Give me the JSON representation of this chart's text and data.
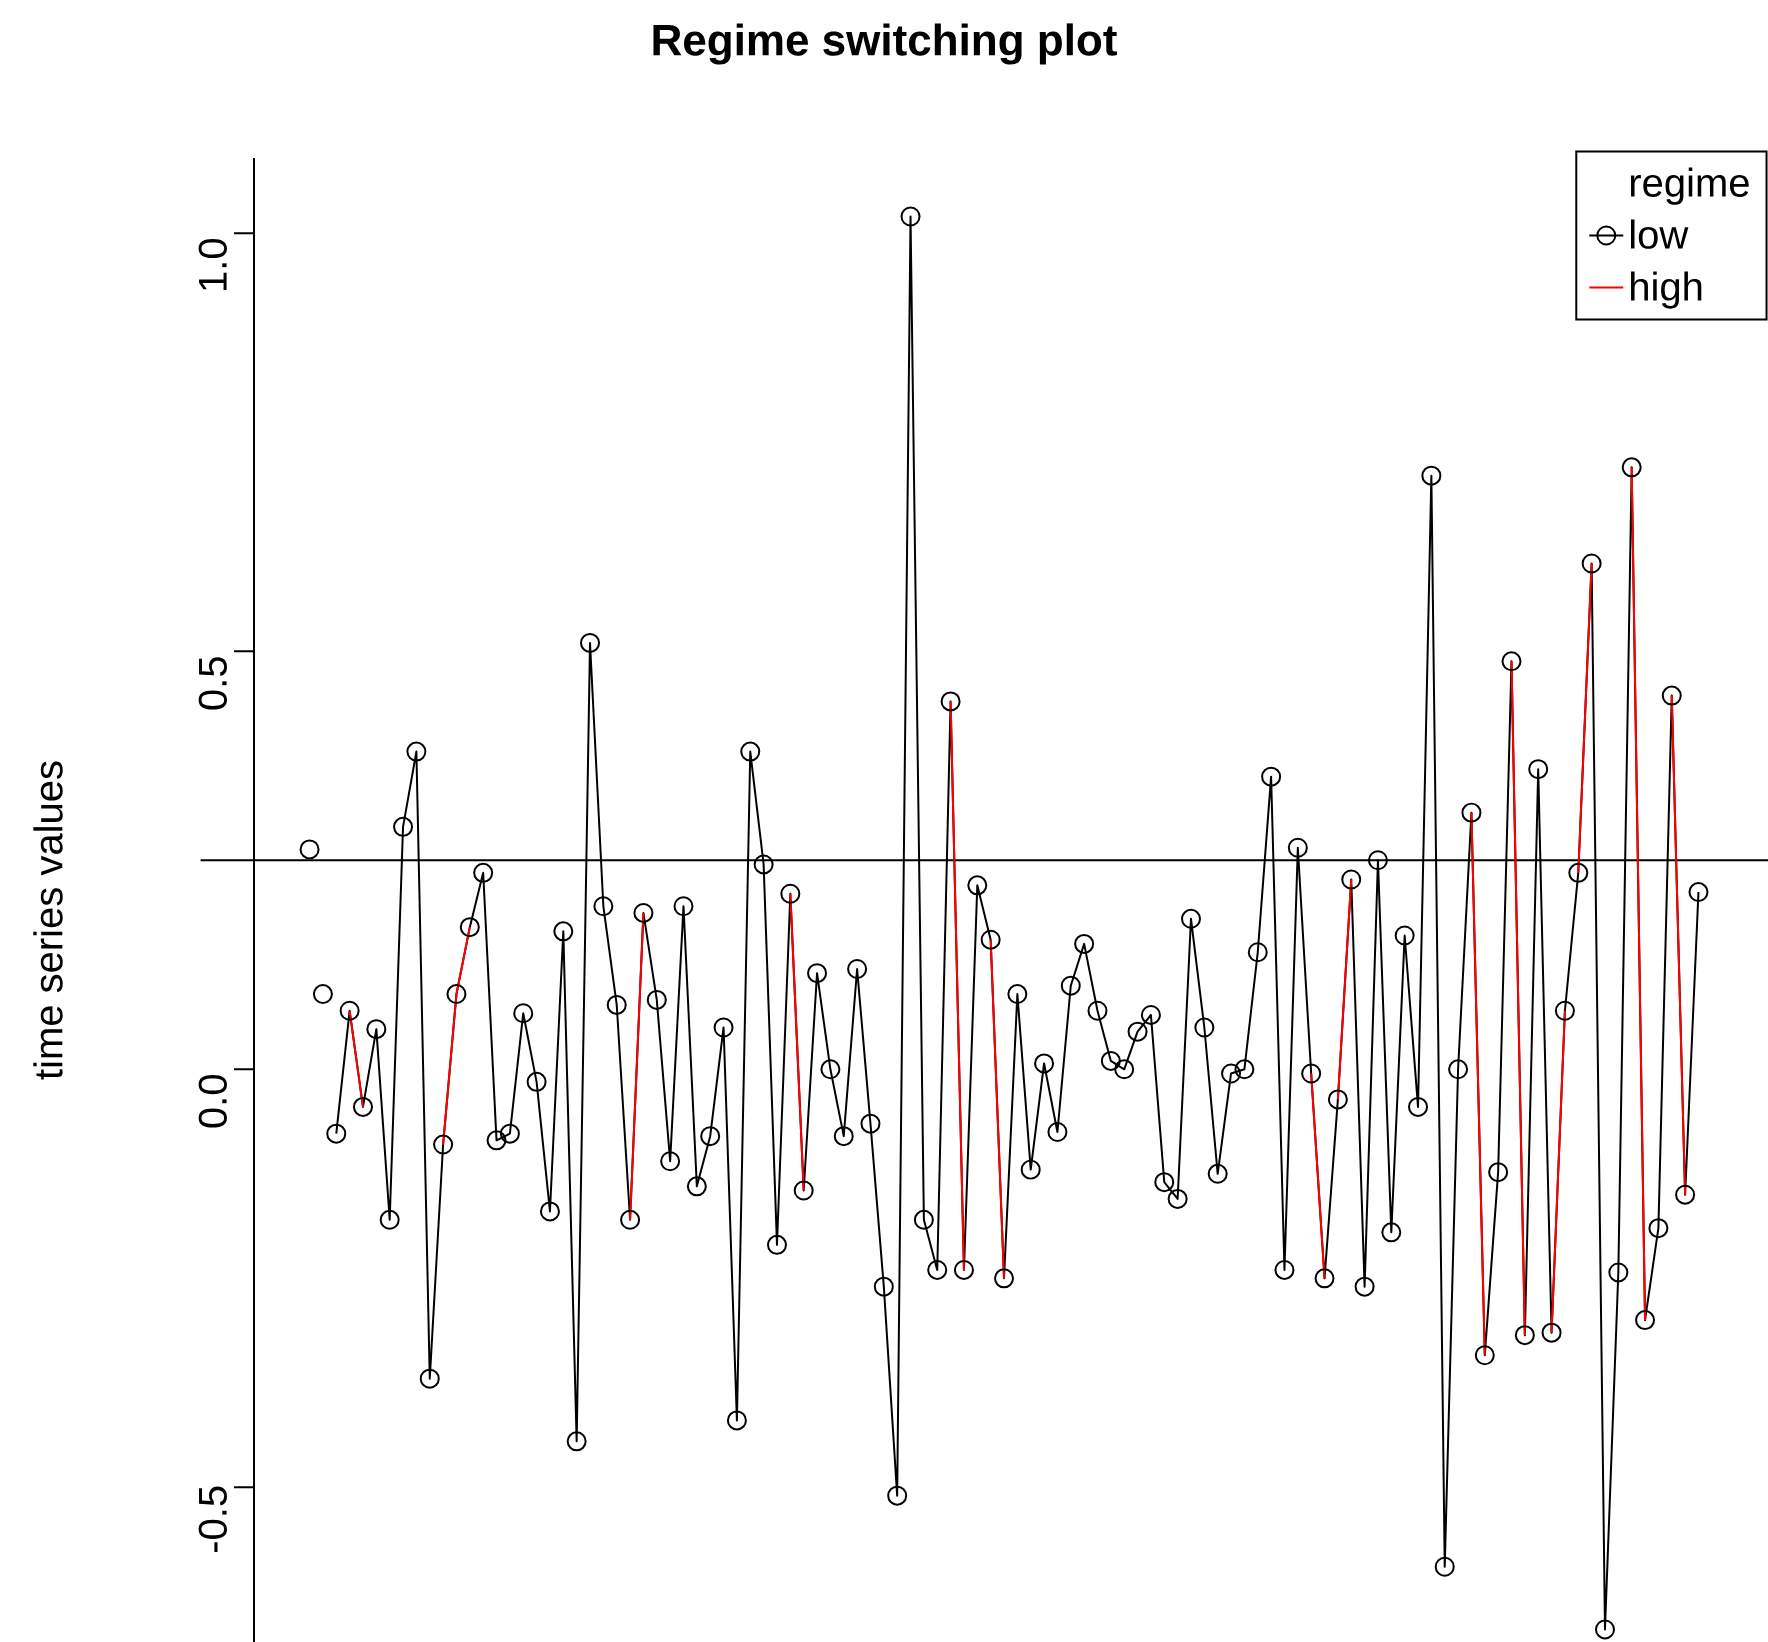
{
  "chart_data": {
    "type": "line",
    "title": "Regime switching plot",
    "ylabel": "time series values",
    "legend_title": "regime",
    "categories": [
      null,
      null,
      null,
      null,
      null,
      null,
      null,
      null,
      null,
      null,
      null,
      null,
      null,
      null,
      null,
      null,
      null,
      null,
      null,
      null,
      null,
      null,
      null,
      null,
      null,
      null,
      null,
      null,
      null,
      null,
      null,
      null,
      null,
      null,
      null,
      null,
      null,
      null,
      null,
      null,
      null,
      null,
      null,
      null,
      null,
      null,
      null,
      null,
      null,
      null,
      null,
      null,
      null,
      null,
      null,
      null,
      null,
      null,
      null,
      null,
      null,
      null,
      null,
      null,
      null,
      null,
      null,
      null,
      null,
      null,
      null,
      null,
      null,
      null,
      null,
      null,
      null,
      null,
      null,
      null,
      null,
      null,
      null,
      null,
      null,
      null,
      null,
      null,
      null,
      null,
      null,
      null,
      null,
      null,
      null,
      null,
      null,
      null,
      null,
      null,
      null,
      null,
      null,
      null,
      null
    ],
    "ylim": [
      -0.685,
      1.09
    ],
    "yticks": [
      -0.5,
      {
        "value": 0,
        "label": "0.0"
      },
      0.5,
      {
        "value": 1,
        "label": "1.0"
      }
    ],
    "tick_labels": "y",
    "legend": "top right",
    "ref_lines": [
      {
        "axis": "y",
        "value": 0.25,
        "color": "#000000"
      }
    ],
    "series": [
      {
        "name": "low",
        "color": "#000000",
        "marker": "circle",
        "values": [
          null,
          null,
          -0.077,
          0.07,
          -0.045,
          0.048,
          -0.18,
          0.29,
          0.38,
          -0.37,
          -0.09,
          0.09,
          0.17,
          0.235,
          -0.085,
          -0.077,
          0.067,
          -0.015,
          -0.17,
          0.165,
          -0.445,
          0.51,
          0.195,
          0.077,
          -0.18,
          0.187,
          0.083,
          -0.11,
          0.195,
          -0.14,
          -0.08,
          0.05,
          -0.42,
          0.38,
          0.245,
          -0.21,
          0.21,
          -0.145,
          0.115,
          0.0,
          -0.08,
          0.12,
          -0.065,
          -0.26,
          -0.51,
          1.02,
          -0.18,
          -0.24,
          0.44,
          -0.24,
          0.22,
          0.155,
          -0.25,
          0.09,
          -0.12,
          0.007,
          -0.075,
          0.1,
          0.15,
          0.07,
          0.01,
          0.0,
          0.045,
          0.065,
          -0.135,
          -0.155,
          0.18,
          0.05,
          -0.125,
          -0.005,
          0.0,
          0.14,
          0.35,
          -0.24,
          0.265,
          -0.005,
          -0.25,
          -0.036,
          0.227,
          -0.26,
          0.25,
          -0.195,
          0.16,
          -0.045,
          0.71,
          -0.595,
          0.0,
          0.307,
          -0.342,
          -0.123,
          0.488,
          -0.318,
          0.359,
          -0.315,
          0.07,
          0.235,
          0.605,
          -0.67,
          -0.243,
          0.72,
          -0.3,
          -0.19,
          0.447,
          -0.15,
          0.212
        ]
      },
      {
        "name": "high",
        "color": "#ff0000",
        "marker": "none",
        "values": [
          null,
          null,
          null,
          0.07,
          -0.045,
          null,
          null,
          null,
          null,
          null,
          -0.09,
          0.09,
          0.17,
          null,
          null,
          null,
          null,
          null,
          null,
          null,
          null,
          null,
          null,
          null,
          -0.18,
          0.187,
          null,
          null,
          null,
          null,
          null,
          null,
          null,
          null,
          null,
          null,
          0.21,
          -0.145,
          null,
          null,
          null,
          null,
          null,
          null,
          null,
          null,
          null,
          null,
          0.44,
          -0.24,
          null,
          0.155,
          -0.25,
          null,
          null,
          null,
          null,
          null,
          null,
          null,
          null,
          null,
          null,
          null,
          null,
          null,
          null,
          null,
          null,
          null,
          null,
          null,
          null,
          null,
          null,
          -0.005,
          -0.25,
          null,
          null,
          null,
          null,
          null,
          null,
          null,
          null,
          null,
          null,
          0.307,
          -0.342,
          null,
          0.488,
          -0.318,
          null,
          -0.315,
          0.07,
          null,
          null,
          null,
          null,
          0.72,
          -0.3,
          null,
          0.447,
          -0.15,
          null
        ]
      },
      {
        "color": "#ff0000",
        "marker": "none",
        "values": [
          null,
          null,
          null,
          null,
          null,
          null,
          null,
          null,
          null,
          null,
          null,
          null,
          null,
          null,
          null,
          null,
          null,
          null,
          null,
          null,
          null,
          null,
          null,
          null,
          null,
          null,
          null,
          null,
          null,
          null,
          null,
          null,
          null,
          null,
          null,
          null,
          null,
          null,
          null,
          null,
          null,
          null,
          null,
          null,
          null,
          null,
          null,
          null,
          null,
          null,
          null,
          null,
          null,
          null,
          null,
          null,
          null,
          null,
          null,
          null,
          null,
          null,
          null,
          null,
          null,
          null,
          null,
          null,
          null,
          null,
          null,
          null,
          null,
          null,
          null,
          null,
          null,
          -0.036,
          0.227,
          null,
          null,
          null,
          null,
          null,
          null,
          null,
          null,
          null,
          null,
          null,
          null,
          null,
          null,
          null,
          null,
          0.235,
          0.605,
          null,
          null,
          null,
          null,
          null,
          null,
          null,
          null
        ]
      },
      {
        "type": "scatter",
        "color": "#000000",
        "marker": "circle",
        "values": [
          0.263,
          0.09,
          null,
          null,
          null,
          null,
          null,
          null,
          null,
          null,
          null,
          null,
          null,
          null,
          null,
          null,
          null,
          null,
          null,
          null,
          null,
          null,
          null,
          null,
          null,
          null,
          null,
          null,
          null,
          null,
          null,
          null,
          null,
          null,
          null,
          null,
          null,
          null,
          null,
          null,
          null,
          null,
          null,
          null,
          null,
          null,
          null,
          null,
          null,
          null,
          null,
          null,
          null,
          null,
          null,
          null,
          null,
          null,
          null,
          null,
          null,
          null,
          null,
          null,
          null,
          null,
          null,
          null,
          null,
          null,
          null,
          null,
          null,
          null,
          null,
          null,
          null,
          null,
          null,
          null,
          null,
          null,
          null,
          null,
          null,
          null,
          null,
          null,
          null,
          null,
          null,
          null,
          null,
          null,
          null,
          null,
          null,
          null,
          null,
          null,
          null,
          null,
          null,
          null,
          null
        ]
      }
    ]
  }
}
